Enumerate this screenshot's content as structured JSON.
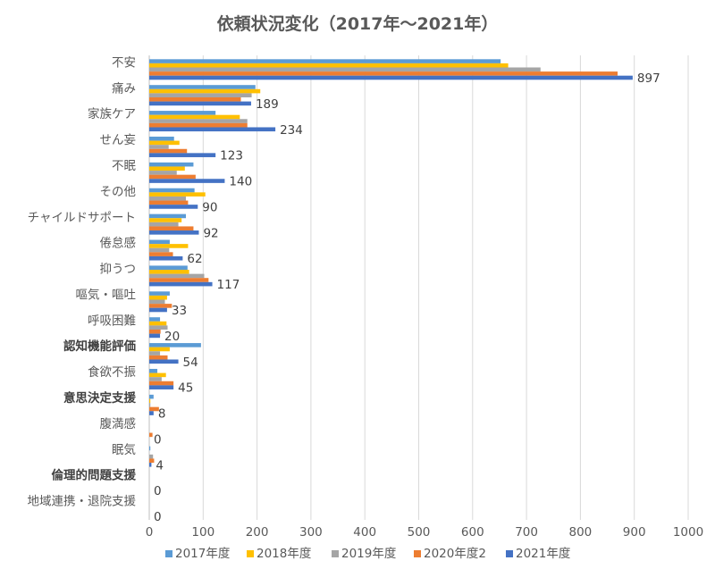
{
  "chart_data": {
    "type": "bar",
    "orientation": "horizontal",
    "title": "依頼状況変化（2017年～2021年）",
    "categories": [
      "不安",
      "痛み",
      "家族ケア",
      "せん妄",
      "不眠",
      "その他",
      "チャイルドサポート",
      "倦怠感",
      "抑うつ",
      "嘔気・嘔吐",
      "呼吸困難",
      "認知機能評価",
      "食欲不振",
      "意思決定支援",
      "腹満感",
      "眠気",
      "倫理的問題支援",
      "地域連携・退院支援"
    ],
    "bold_categories": [
      "認知機能評価",
      "意思決定支援",
      "倫理的問題支援"
    ],
    "series": [
      {
        "name": "2017年度",
        "color": "#5B9BD5",
        "values": [
          652,
          197,
          123,
          46,
          82,
          84,
          68,
          38,
          71,
          38,
          20,
          96,
          15,
          8,
          0,
          2,
          0,
          0
        ]
      },
      {
        "name": "2018年度",
        "color": "#FFC000",
        "values": [
          666,
          206,
          168,
          56,
          66,
          104,
          60,
          72,
          74,
          33,
          32,
          38,
          31,
          2,
          0,
          0,
          0,
          0
        ]
      },
      {
        "name": "2019年度",
        "color": "#A5A5A5",
        "values": [
          726,
          190,
          182,
          36,
          51,
          68,
          54,
          37,
          102,
          29,
          34,
          20,
          23,
          2,
          0,
          7,
          0,
          0
        ]
      },
      {
        "name": "2020年度2",
        "color": "#ED7D31",
        "values": [
          869,
          170,
          182,
          70,
          86,
          72,
          82,
          44,
          110,
          42,
          21,
          34,
          45,
          18,
          6,
          9,
          0,
          0
        ]
      },
      {
        "name": "2021年度",
        "color": "#4472C4",
        "values": [
          897,
          189,
          234,
          123,
          140,
          90,
          92,
          62,
          117,
          33,
          20,
          54,
          45,
          8,
          0,
          4,
          0,
          0
        ]
      }
    ],
    "data_labels_series": "2021年度",
    "data_labels": [
      "897",
      "189",
      "234",
      "123",
      "140",
      "90",
      "92",
      "62",
      "117",
      "33",
      "20",
      "54",
      "45",
      "8",
      "0",
      "4",
      "0",
      "0"
    ],
    "xlim": [
      0,
      1000
    ],
    "xticks": [
      "0",
      "100",
      "200",
      "300",
      "400",
      "500",
      "600",
      "700",
      "800",
      "900",
      "1000"
    ],
    "grid": "vertical",
    "legend_position": "bottom"
  }
}
